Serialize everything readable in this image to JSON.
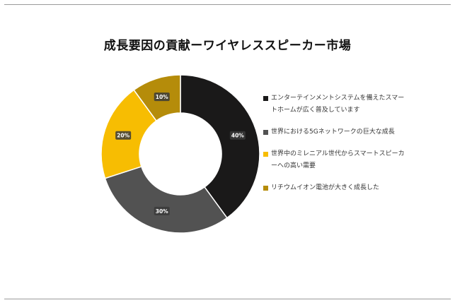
{
  "chart_data": {
    "type": "pie",
    "donut": true,
    "title": "成長要因の貢献ーワイヤレススピーカー市場",
    "categories": [
      "エンターテインメントシステムを備えたスマートホームが広く普及しています",
      "世界における5Gネットワークの巨大な成長",
      "世界中のミレニアル世代からスマートスピーカーへの高い需要",
      "リチウムイオン電池が大きく成長した"
    ],
    "values": [
      40,
      30,
      20,
      10
    ],
    "data_labels": [
      "40%",
      "30%",
      "20%",
      "10%"
    ],
    "colors": [
      "#1a1919",
      "#525252",
      "#f7bd02",
      "#b58c0a"
    ],
    "legend_position": "right"
  }
}
